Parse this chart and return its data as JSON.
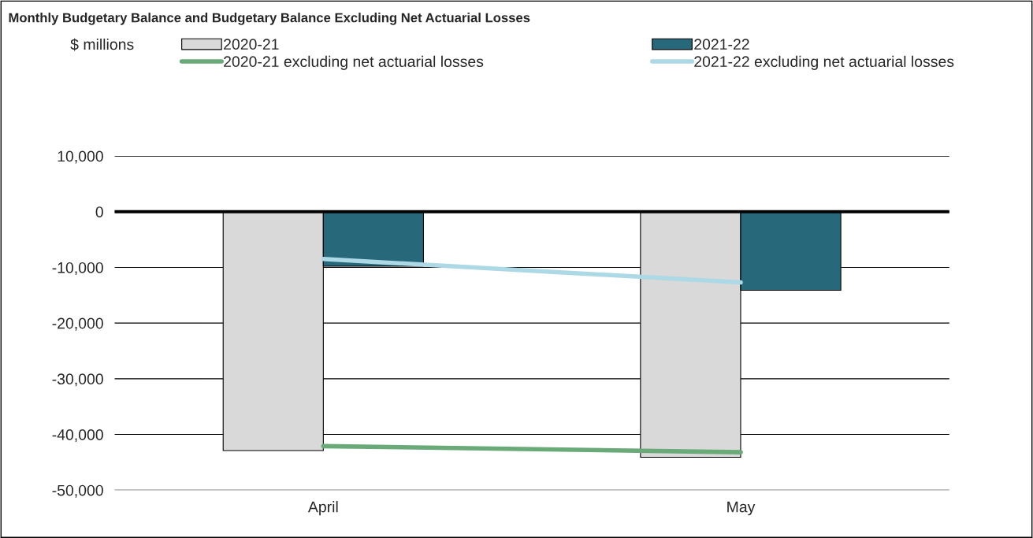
{
  "chart_data": {
    "type": "bar",
    "title": "Monthly Budgetary Balance and Budgetary Balance Excluding Net Actuarial Losses",
    "annotations": [
      "$ millions"
    ],
    "categories": [
      "April",
      "May"
    ],
    "series": [
      {
        "name": "2020-21",
        "color": "#d9d9d9",
        "values": [
          -42900,
          -44100
        ]
      },
      {
        "name": "2021-22",
        "color": "#27697a",
        "values": [
          -9800,
          -14100
        ]
      },
      {
        "name": "2020-21 excluding net actuarial losses",
        "type": "line",
        "color": "#6aaa78",
        "values": [
          -42100,
          -43200
        ]
      },
      {
        "name": "2021-22 excluding net actuarial losses",
        "type": "line",
        "color": "#add8e6",
        "values": [
          -8500,
          -12700
        ]
      }
    ],
    "ylim": [
      -50000,
      10000
    ],
    "yticks": [
      {
        "value": -50000,
        "label": "-50,000"
      },
      {
        "value": -40000,
        "label": "-40,000"
      },
      {
        "value": -30000,
        "label": "-30,000"
      },
      {
        "value": -20000,
        "label": "-20,000"
      },
      {
        "value": -10000,
        "label": "-10,000"
      },
      0,
      {
        "value": 10000,
        "label": "10,000"
      }
    ],
    "ref_lines": [
      {
        "axis": "y",
        "value": 0,
        "color": "#000000"
      }
    ],
    "grid": "y",
    "legend": "top"
  }
}
